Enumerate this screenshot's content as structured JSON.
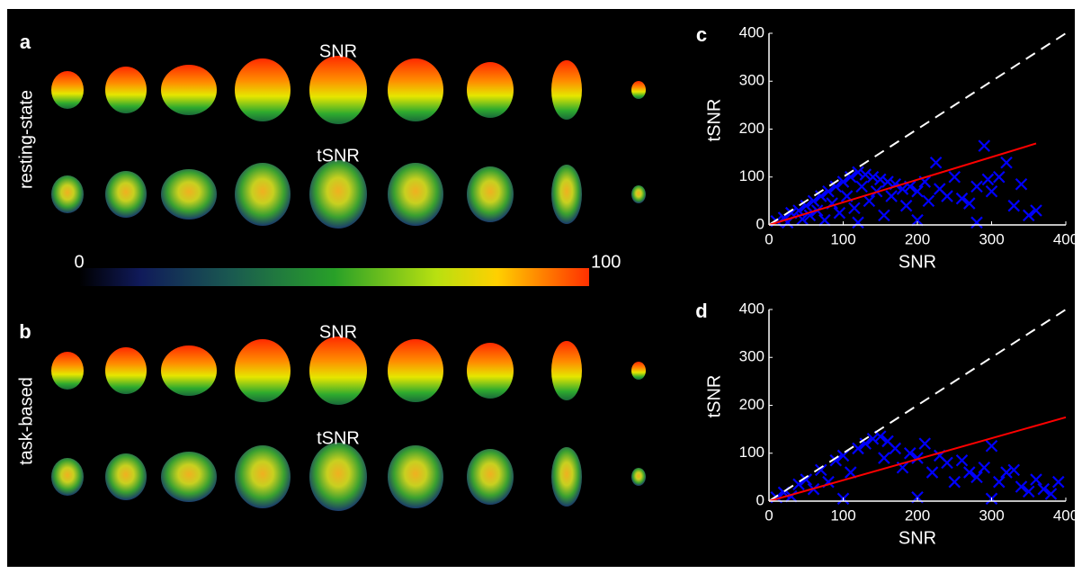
{
  "panels": [
    {
      "label": "a",
      "row_label": "resting-state",
      "titles": [
        "SNR",
        "tSNR"
      ]
    },
    {
      "label": "b",
      "row_label": "task-based",
      "titles": [
        "SNR",
        "tSNR"
      ]
    }
  ],
  "colorbar": {
    "lim": [
      0,
      100
    ],
    "ticks": [
      0,
      100
    ]
  },
  "chart_data": [
    {
      "type": "scatter",
      "panel_label": "c",
      "xlabel": "SNR",
      "ylabel": "tSNR",
      "xlim": [
        0,
        400
      ],
      "ylim": [
        0,
        400
      ],
      "xticks": [
        0,
        100,
        200,
        300,
        400
      ],
      "yticks": [
        0,
        100,
        200,
        300,
        400
      ],
      "color": "#0000ff",
      "x": [
        10,
        20,
        25,
        30,
        40,
        45,
        50,
        55,
        60,
        65,
        70,
        75,
        80,
        85,
        90,
        95,
        100,
        105,
        110,
        115,
        120,
        125,
        130,
        135,
        140,
        145,
        150,
        155,
        160,
        165,
        170,
        180,
        185,
        190,
        200,
        210,
        215,
        225,
        230,
        240,
        250,
        260,
        270,
        280,
        290,
        295,
        300,
        310,
        320,
        330,
        340,
        350,
        360,
        120,
        200,
        280
      ],
      "y": [
        8,
        15,
        5,
        25,
        30,
        12,
        40,
        20,
        50,
        30,
        60,
        10,
        70,
        45,
        80,
        25,
        90,
        60,
        100,
        35,
        110,
        80,
        105,
        50,
        100,
        70,
        95,
        20,
        90,
        60,
        85,
        75,
        40,
        80,
        70,
        90,
        50,
        130,
        75,
        60,
        100,
        55,
        45,
        80,
        165,
        95,
        70,
        100,
        130,
        40,
        85,
        20,
        30,
        5,
        10,
        5
      ],
      "lines": [
        {
          "x": [
            0,
            400
          ],
          "y": [
            0,
            400
          ],
          "color": "#ffffff",
          "dashed": true
        },
        {
          "x": [
            0,
            360
          ],
          "y": [
            0,
            170
          ],
          "color": "#ff0000",
          "dashed": false
        }
      ]
    },
    {
      "type": "scatter",
      "panel_label": "d",
      "xlabel": "SNR",
      "ylabel": "tSNR",
      "xlim": [
        0,
        400
      ],
      "ylim": [
        0,
        400
      ],
      "xticks": [
        0,
        100,
        200,
        300,
        400
      ],
      "yticks": [
        0,
        100,
        200,
        300,
        400
      ],
      "color": "#0000ff",
      "x": [
        10,
        20,
        30,
        40,
        50,
        60,
        70,
        80,
        90,
        100,
        110,
        120,
        130,
        140,
        150,
        155,
        160,
        170,
        180,
        190,
        200,
        210,
        220,
        230,
        240,
        250,
        260,
        270,
        280,
        290,
        300,
        310,
        320,
        330,
        340,
        350,
        360,
        370,
        380,
        390,
        100,
        200,
        300
      ],
      "y": [
        8,
        18,
        10,
        35,
        45,
        25,
        65,
        40,
        85,
        95,
        60,
        110,
        120,
        130,
        135,
        90,
        125,
        110,
        70,
        100,
        90,
        120,
        60,
        95,
        80,
        40,
        85,
        60,
        50,
        70,
        115,
        40,
        60,
        65,
        30,
        20,
        45,
        25,
        15,
        40,
        5,
        8,
        5
      ],
      "lines": [
        {
          "x": [
            0,
            400
          ],
          "y": [
            0,
            400
          ],
          "color": "#ffffff",
          "dashed": true
        },
        {
          "x": [
            0,
            400
          ],
          "y": [
            0,
            175
          ],
          "color": "#ff0000",
          "dashed": false
        }
      ]
    }
  ]
}
